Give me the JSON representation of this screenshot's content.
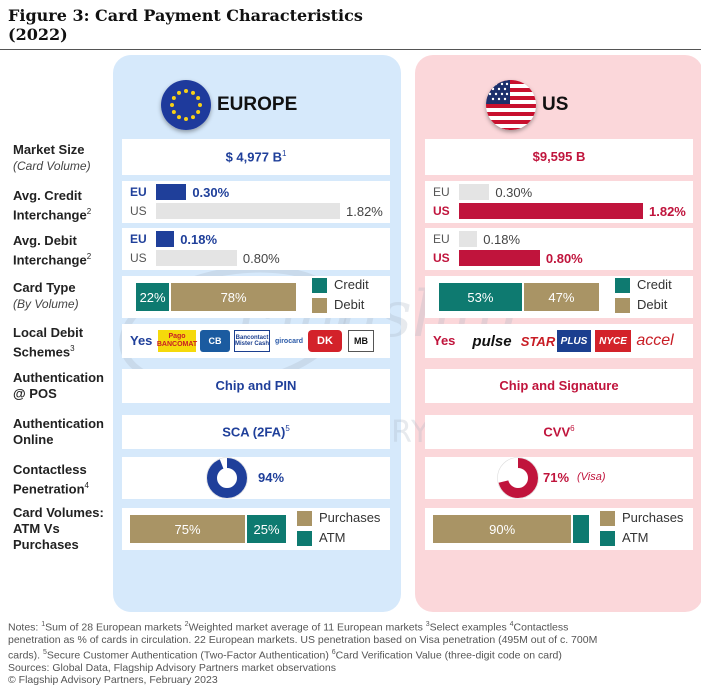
{
  "title": {
    "line1": "Figure 3: Card Payment Characteristics",
    "line2": "(2022)"
  },
  "regions": {
    "eu": {
      "name": "EUROPE"
    },
    "us": {
      "name": "US"
    }
  },
  "rows": {
    "market_size": {
      "label": "Market Size",
      "sub": "(Card Volume)"
    },
    "credit_ic": {
      "label1": "Avg. Credit",
      "label2": "Interchange",
      "fn": "2"
    },
    "debit_ic": {
      "label1": "Avg. Debit",
      "label2": "Interchange",
      "fn": "2"
    },
    "card_type": {
      "label": "Card Type",
      "sub": "(By Volume)"
    },
    "local_debit": {
      "label1": "Local Debit",
      "label2": "Schemes",
      "fn": "3"
    },
    "auth_pos": {
      "label1": "Authentication",
      "label2": "@ POS"
    },
    "auth_online": {
      "label1": "Authentication",
      "label2": "Online"
    },
    "contactless": {
      "label1": "Contactless",
      "label2": "Penetration",
      "fn": "4"
    },
    "card_volumes": {
      "label1": "Card Volumes:",
      "label2": "ATM Vs",
      "label3": "Purchases"
    }
  },
  "europe": {
    "market_size": "$ 4,977 B",
    "market_size_fn": "1",
    "auth_pos": "Chip and PIN",
    "auth_online": "SCA (2FA)",
    "auth_online_fn": "5",
    "contactless_label": "94%",
    "schemes_yes": "Yes",
    "schemes": [
      "Pago BANCOMAT",
      "CB",
      "Bancontact Mister Cash",
      "girocard",
      "DK",
      "MB"
    ]
  },
  "us": {
    "market_size": "$9,595 B",
    "auth_pos": "Chip and Signature",
    "auth_online": "CVV",
    "auth_online_fn": "6",
    "contactless_label": "71%",
    "contactless_note": "(Visa)",
    "schemes_yes": "Yes",
    "schemes": [
      "pulse",
      "STAR",
      "PLUS",
      "NYCE",
      "accel"
    ]
  },
  "chart_data": [
    {
      "type": "bar",
      "title": "Avg. Credit Interchange — Europe",
      "categories": [
        "EU",
        "US"
      ],
      "values": [
        0.3,
        1.82
      ],
      "labels": [
        "0.30%",
        "1.82%"
      ],
      "highlight": "EU",
      "xlim": [
        0,
        1.82
      ]
    },
    {
      "type": "bar",
      "title": "Avg. Credit Interchange — US",
      "categories": [
        "EU",
        "US"
      ],
      "values": [
        0.3,
        1.82
      ],
      "labels": [
        "0.30%",
        "1.82%"
      ],
      "highlight": "US",
      "xlim": [
        0,
        1.82
      ]
    },
    {
      "type": "bar",
      "title": "Avg. Debit Interchange — Europe",
      "categories": [
        "EU",
        "US"
      ],
      "values": [
        0.18,
        0.8
      ],
      "labels": [
        "0.18%",
        "0.80%"
      ],
      "highlight": "EU",
      "xlim": [
        0,
        1.82
      ]
    },
    {
      "type": "bar",
      "title": "Avg. Debit Interchange — US",
      "categories": [
        "EU",
        "US"
      ],
      "values": [
        0.18,
        0.8
      ],
      "labels": [
        "0.18%",
        "0.80%"
      ],
      "highlight": "US",
      "xlim": [
        0,
        1.82
      ]
    },
    {
      "type": "bar",
      "title": "Card Type — Europe",
      "stacked": true,
      "series": [
        {
          "name": "Credit",
          "values": [
            22
          ],
          "label": "22%"
        },
        {
          "name": "Debit",
          "values": [
            78
          ],
          "label": "78%"
        }
      ]
    },
    {
      "type": "bar",
      "title": "Card Type — US",
      "stacked": true,
      "series": [
        {
          "name": "Credit",
          "values": [
            53
          ],
          "label": "53%"
        },
        {
          "name": "Debit",
          "values": [
            47
          ],
          "label": "47%"
        }
      ]
    },
    {
      "type": "pie",
      "title": "Contactless Penetration — Europe",
      "values": [
        94,
        6
      ],
      "labels": [
        "94%",
        ""
      ]
    },
    {
      "type": "pie",
      "title": "Contactless Penetration — US",
      "values": [
        71,
        29
      ],
      "labels": [
        "71%",
        ""
      ]
    },
    {
      "type": "bar",
      "title": "Card Volumes — Europe",
      "stacked": true,
      "series": [
        {
          "name": "Purchases",
          "values": [
            75
          ],
          "label": "75%"
        },
        {
          "name": "ATM",
          "values": [
            25
          ],
          "label": "25%"
        }
      ]
    },
    {
      "type": "bar",
      "title": "Card Volumes — US",
      "stacked": true,
      "series": [
        {
          "name": "Purchases",
          "values": [
            90
          ],
          "label": "90%"
        },
        {
          "name": "ATM",
          "values": [
            10
          ],
          "label": ""
        }
      ]
    }
  ],
  "legend": {
    "credit": "Credit",
    "debit": "Debit",
    "purchases": "Purchases",
    "atm": "ATM"
  },
  "colors": {
    "eu_blue": "#1f3f9a",
    "us_red": "#c0143c",
    "teal": "#0e7a70",
    "tan": "#a99465",
    "grey": "#e4e4e4"
  },
  "watermark": {
    "line1": "Flagship",
    "line2": "ADVISORY PARTNERS"
  },
  "notes": {
    "line1a": "Notes: ",
    "fn1": "1",
    "t1": "Sum of 28 European markets ",
    "fn2": "2",
    "t2": "Weighted market average of 11 European markets ",
    "fn3": "3",
    "t3": "Select examples ",
    "fn4": "4",
    "t4": "Contactless",
    "line2": "penetration as % of cards in circulation. 22 European markets. US penetration based on Visa penetration (495M out of c. 700M",
    "line3a": "cards). ",
    "fn5": "5",
    "t5": "Secure Customer Authentication (Two-Factor Authentication) ",
    "fn6": "6",
    "t6": "Card Verification Value (three-digit code on card)",
    "line4": "Sources: Global Data, Flagship Advisory Partners market observations",
    "line5": "© Flagship Advisory Partners, February 2023"
  }
}
